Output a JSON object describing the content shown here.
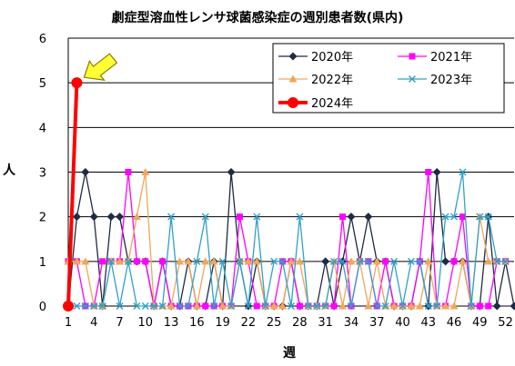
{
  "chart_data": {
    "type": "line",
    "title": "劇症型溶血性レンサ球菌感染症の週別患者数(県内)",
    "xlabel": "週",
    "ylabel": "人",
    "xlim": [
      1,
      53
    ],
    "ylim": [
      0,
      6
    ],
    "yticks": [
      0,
      1,
      2,
      3,
      4,
      5,
      6
    ],
    "xticks": [
      1,
      4,
      7,
      10,
      13,
      16,
      19,
      22,
      25,
      28,
      31,
      34,
      37,
      40,
      43,
      46,
      49,
      52
    ],
    "grid": "horizontal",
    "legend_position": "top-right",
    "series": [
      {
        "name": "2020年",
        "color": "#1f2a44",
        "marker": "diamond",
        "values": [
          0,
          2,
          3,
          2,
          0,
          2,
          2,
          1,
          1,
          1,
          0,
          1,
          0,
          0,
          1,
          0,
          0,
          1,
          0,
          3,
          1,
          0,
          1,
          0,
          0,
          0,
          1,
          0,
          0,
          0,
          1,
          0,
          1,
          2,
          1,
          2,
          1,
          1,
          0,
          0,
          0,
          1,
          0,
          3,
          1,
          1,
          1,
          0,
          0,
          2,
          0,
          1,
          0
        ]
      },
      {
        "name": "2021年",
        "color": "#ff00ff",
        "marker": "square",
        "values": [
          1,
          1,
          0,
          0,
          1,
          1,
          1,
          3,
          1,
          1,
          0,
          1,
          0,
          0,
          0,
          0,
          0,
          0,
          0,
          0,
          2,
          1,
          0,
          0,
          0,
          1,
          1,
          0,
          0,
          0,
          0,
          0,
          2,
          0,
          1,
          1,
          0,
          1,
          0,
          0,
          0,
          1,
          3,
          0,
          0,
          1,
          2,
          0,
          0,
          0,
          1,
          1,
          null
        ]
      },
      {
        "name": "2022年",
        "color": "#f2a65a",
        "marker": "triangle",
        "values": [
          1,
          1,
          1,
          0,
          0,
          1,
          1,
          1,
          2,
          3,
          0,
          0,
          0,
          1,
          1,
          0,
          1,
          1,
          0,
          0,
          1,
          1,
          1,
          0,
          0,
          0,
          1,
          1,
          0,
          0,
          0,
          1,
          0,
          1,
          1,
          0,
          1,
          0,
          0,
          0,
          0,
          0,
          1,
          0,
          0,
          0,
          1,
          0,
          2,
          1,
          1,
          1,
          null
        ]
      },
      {
        "name": "2023年",
        "color": "#30a0c8",
        "marker": "x",
        "values": [
          0,
          0,
          0,
          0,
          0,
          1,
          0,
          1,
          0,
          0,
          0,
          0,
          2,
          0,
          0,
          1,
          2,
          0,
          1,
          0,
          1,
          0,
          2,
          0,
          1,
          1,
          0,
          2,
          0,
          0,
          0,
          1,
          1,
          0,
          1,
          1,
          0,
          0,
          1,
          0,
          1,
          1,
          0,
          0,
          2,
          2,
          3,
          0,
          2,
          2,
          1,
          1,
          null
        ]
      },
      {
        "name": "2024年",
        "color": "#ff0000",
        "marker": "circle",
        "values": [
          0,
          5
        ]
      }
    ]
  }
}
